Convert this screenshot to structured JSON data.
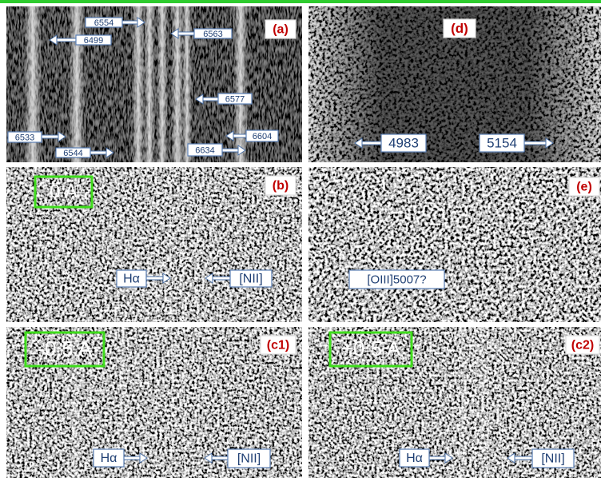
{
  "panels": {
    "a": {
      "tag": "(a)",
      "labels": [
        "6554",
        "6499",
        "6563",
        "6577",
        "6533",
        "6544",
        "6604",
        "6634"
      ]
    },
    "d": {
      "tag": "(d)",
      "labels": [
        "4983",
        "5154"
      ]
    },
    "b": {
      "tag": "(b)",
      "offset": "0 A",
      "labels": [
        "Hα",
        "[NII]"
      ]
    },
    "e": {
      "tag": "(e)",
      "labels": [
        "[OIII]5007?"
      ]
    },
    "c1": {
      "tag": "(c1)",
      "offset": "-0.5 A",
      "labels": [
        "Hα",
        "[NII]"
      ]
    },
    "c2": {
      "tag": "(c2)",
      "offset": "+0.5 A",
      "labels": [
        "Hα",
        "[NII]"
      ]
    }
  }
}
